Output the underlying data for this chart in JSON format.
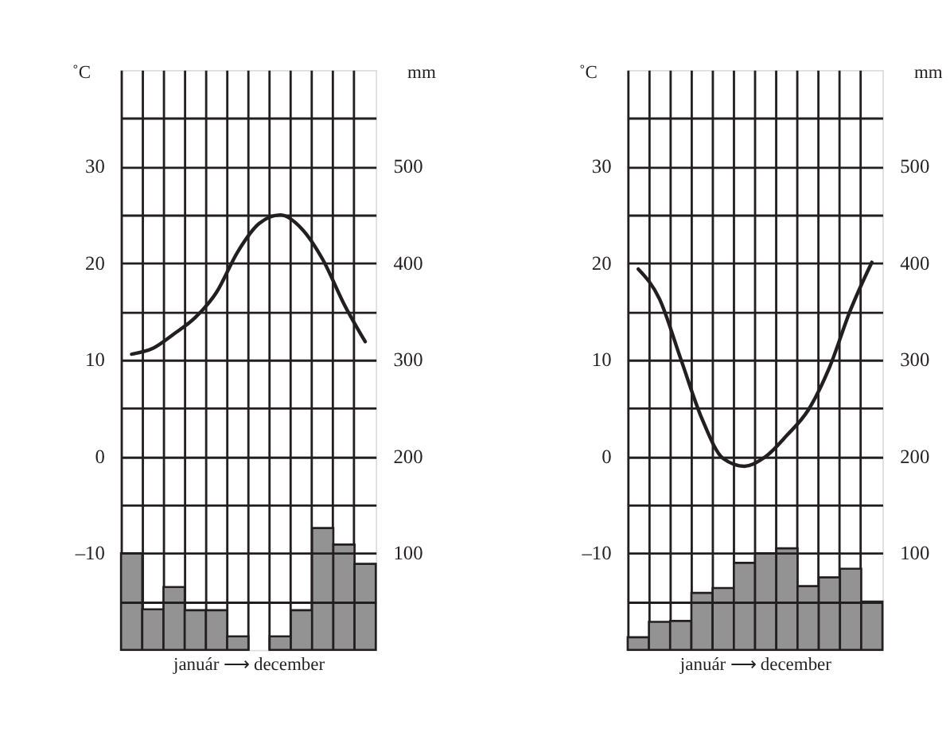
{
  "chart_data": [
    {
      "type": "bar",
      "categories": [
        null,
        null,
        null,
        null,
        null,
        null,
        null,
        null,
        null,
        null,
        null,
        null
      ],
      "ylabel": "˚C",
      "y2label": "mm",
      "xlabel": "január ⟶ december",
      "ylim": [
        -20,
        40
      ],
      "yticks": [
        {
          "value": -15,
          "label": null
        },
        {
          "value": -10,
          "label": "–10"
        },
        {
          "value": -5,
          "label": null
        },
        0,
        {
          "value": 5,
          "label": null
        },
        10,
        {
          "value": 15,
          "label": null
        },
        20,
        {
          "value": 25,
          "label": null
        },
        30,
        {
          "value": 35,
          "label": null
        }
      ],
      "y2lim": [
        0,
        600
      ],
      "y2ticks": [
        100,
        200,
        300,
        400,
        500
      ],
      "grid": true,
      "tick_labels": "y",
      "series": [
        {
          "axis": "y2",
          "color": "#939393",
          "values": [
            100,
            42,
            65,
            41,
            41,
            14,
            0,
            14,
            41,
            126,
            109,
            89
          ]
        },
        {
          "type": "line",
          "color": "#231f20",
          "values": [
            10.6,
            11.2,
            12.7,
            14.4,
            17.0,
            21.2,
            24.1,
            25.0,
            23.6,
            20.4,
            15.8,
            11.9
          ]
        }
      ]
    },
    {
      "type": "bar",
      "categories": [
        null,
        null,
        null,
        null,
        null,
        null,
        null,
        null,
        null,
        null,
        null,
        null
      ],
      "ylabel": "˚C",
      "y2label": "mm",
      "xlabel": "január ⟶ december",
      "ylim": [
        -20,
        40
      ],
      "yticks": [
        {
          "value": -15,
          "label": null
        },
        {
          "value": -10,
          "label": "–10"
        },
        {
          "value": -5,
          "label": null
        },
        0,
        {
          "value": 5,
          "label": null
        },
        10,
        {
          "value": 15,
          "label": null
        },
        20,
        {
          "value": 25,
          "label": null
        },
        30,
        {
          "value": 35,
          "label": null
        }
      ],
      "y2lim": [
        0,
        600
      ],
      "y2ticks": [
        100,
        200,
        300,
        400,
        500
      ],
      "grid": true,
      "tick_labels": "y",
      "series": [
        {
          "axis": "y2",
          "color": "#939393",
          "values": [
            13,
            29,
            30,
            59,
            64,
            90,
            100,
            105,
            66,
            75,
            84,
            50
          ]
        },
        {
          "type": "line",
          "color": "#231f20",
          "values": [
            19.4,
            16.3,
            10.1,
            3.9,
            -0.2,
            -1.0,
            0.0,
            2.2,
            4.8,
            9.2,
            15.2,
            20.1
          ]
        }
      ]
    }
  ]
}
